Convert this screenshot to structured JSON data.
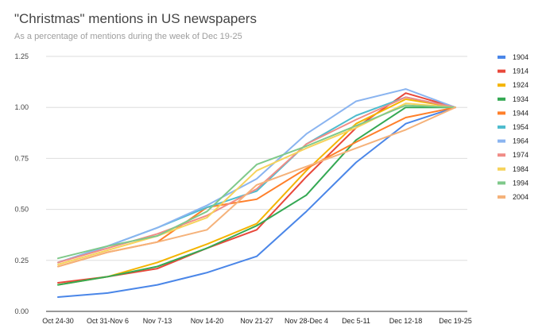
{
  "chart_data": {
    "type": "line",
    "title": "\"Christmas\" mentions in US newspapers",
    "subtitle": "As a percentage of mentions during the week of Dec 19-25",
    "xlabel": "",
    "ylabel": "",
    "categories": [
      "Oct 24-30",
      "Oct 31-Nov 6",
      "Nov 7-13",
      "Nov 14-20",
      "Nov 21-27",
      "Nov 28-Dec 4",
      "Dec 5-11",
      "Dec 12-18",
      "Dec 19-25"
    ],
    "ylim": [
      0,
      1.25
    ],
    "yticks": [
      "0.00",
      "0.25",
      "0.50",
      "0.75",
      "1.00",
      "1.25"
    ],
    "grid": true,
    "legend_position": "right",
    "series": [
      {
        "name": "1904",
        "color": "#4a86e8",
        "values": [
          0.07,
          0.09,
          0.13,
          0.19,
          0.27,
          0.49,
          0.73,
          0.92,
          1.0
        ]
      },
      {
        "name": "1914",
        "color": "#e8483b",
        "values": [
          0.14,
          0.17,
          0.21,
          0.31,
          0.4,
          0.66,
          0.9,
          1.07,
          1.0
        ]
      },
      {
        "name": "1924",
        "color": "#f4b400",
        "values": [
          0.13,
          0.17,
          0.24,
          0.33,
          0.43,
          0.69,
          0.92,
          1.04,
          1.0
        ]
      },
      {
        "name": "1934",
        "color": "#34a853",
        "values": [
          0.13,
          0.17,
          0.22,
          0.31,
          0.42,
          0.57,
          0.84,
          1.0,
          1.0
        ]
      },
      {
        "name": "1944",
        "color": "#ff7f2a",
        "values": [
          0.22,
          0.29,
          0.34,
          0.51,
          0.55,
          0.7,
          0.83,
          0.95,
          1.0
        ]
      },
      {
        "name": "1954",
        "color": "#4fbcce",
        "values": [
          0.24,
          0.32,
          0.41,
          0.51,
          0.59,
          0.82,
          0.96,
          1.05,
          1.0
        ]
      },
      {
        "name": "1964",
        "color": "#8ab4f0",
        "values": [
          0.24,
          0.32,
          0.41,
          0.52,
          0.65,
          0.87,
          1.03,
          1.09,
          1.0
        ]
      },
      {
        "name": "1974",
        "color": "#f08c86",
        "values": [
          0.24,
          0.31,
          0.38,
          0.47,
          0.6,
          0.82,
          0.94,
          1.05,
          1.0
        ]
      },
      {
        "name": "1984",
        "color": "#f6d35c",
        "values": [
          0.23,
          0.3,
          0.37,
          0.46,
          0.69,
          0.8,
          0.9,
          1.02,
          1.0
        ]
      },
      {
        "name": "1994",
        "color": "#7fc98a",
        "values": [
          0.26,
          0.32,
          0.37,
          0.49,
          0.72,
          0.81,
          0.91,
          1.01,
          1.0
        ]
      },
      {
        "name": "2004",
        "color": "#f5b27a",
        "values": [
          0.22,
          0.29,
          0.34,
          0.4,
          0.62,
          0.71,
          0.8,
          0.89,
          1.0
        ]
      }
    ]
  }
}
